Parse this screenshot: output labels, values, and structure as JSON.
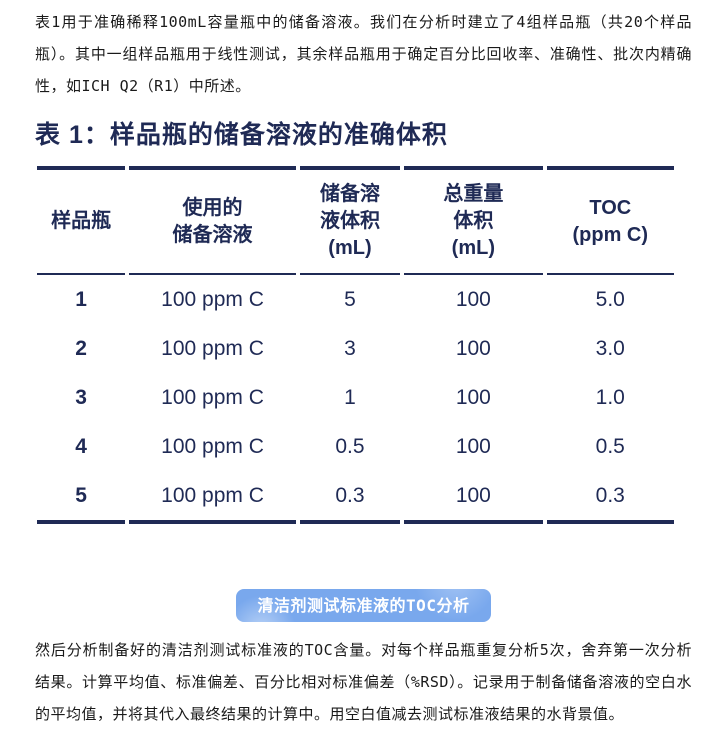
{
  "intro_paragraph": "表1用于准确稀释100mL容量瓶中的储备溶液。我们在分析时建立了4组样品瓶（共20个样品瓶）。其中一组样品瓶用于线性测试，其余样品瓶用于确定百分比回收率、准确性、批次内精确性，如ICH Q2（R1）中所述。",
  "table": {
    "title": "表 1：样品瓶的储备溶液的准确体积",
    "headers": [
      "样品瓶",
      "使用的\n储备溶液",
      "储备溶\n液体积\n(mL)",
      "总重量\n体积\n(mL)",
      "TOC\n(ppm C)"
    ],
    "rows": [
      [
        "1",
        "100 ppm C",
        "5",
        "100",
        "5.0"
      ],
      [
        "2",
        "100 ppm C",
        "3",
        "100",
        "3.0"
      ],
      [
        "3",
        "100 ppm C",
        "1",
        "100",
        "1.0"
      ],
      [
        "4",
        "100 ppm C",
        "0.5",
        "100",
        "0.5"
      ],
      [
        "5",
        "100 ppm C",
        "0.3",
        "100",
        "0.3"
      ]
    ]
  },
  "badge": {
    "label": "清洁剂测试标准液的TOC分析"
  },
  "closing_paragraph": "然后分析制备好的清洁剂测试标准液的TOC含量。对每个样品瓶重复分析5次，舍弃第一次分析结果。计算平均值、标准偏差、百分比相对标准偏差（%RSD）。记录用于制备储备溶液的空白水的平均值，并将其代入最终结果的计算中。用空白值减去测试标准液结果的水背景值。",
  "colors": {
    "table_navy": "#1f2a55",
    "badge_blue": "#79a8ed",
    "body_text": "#1a1a1a"
  }
}
